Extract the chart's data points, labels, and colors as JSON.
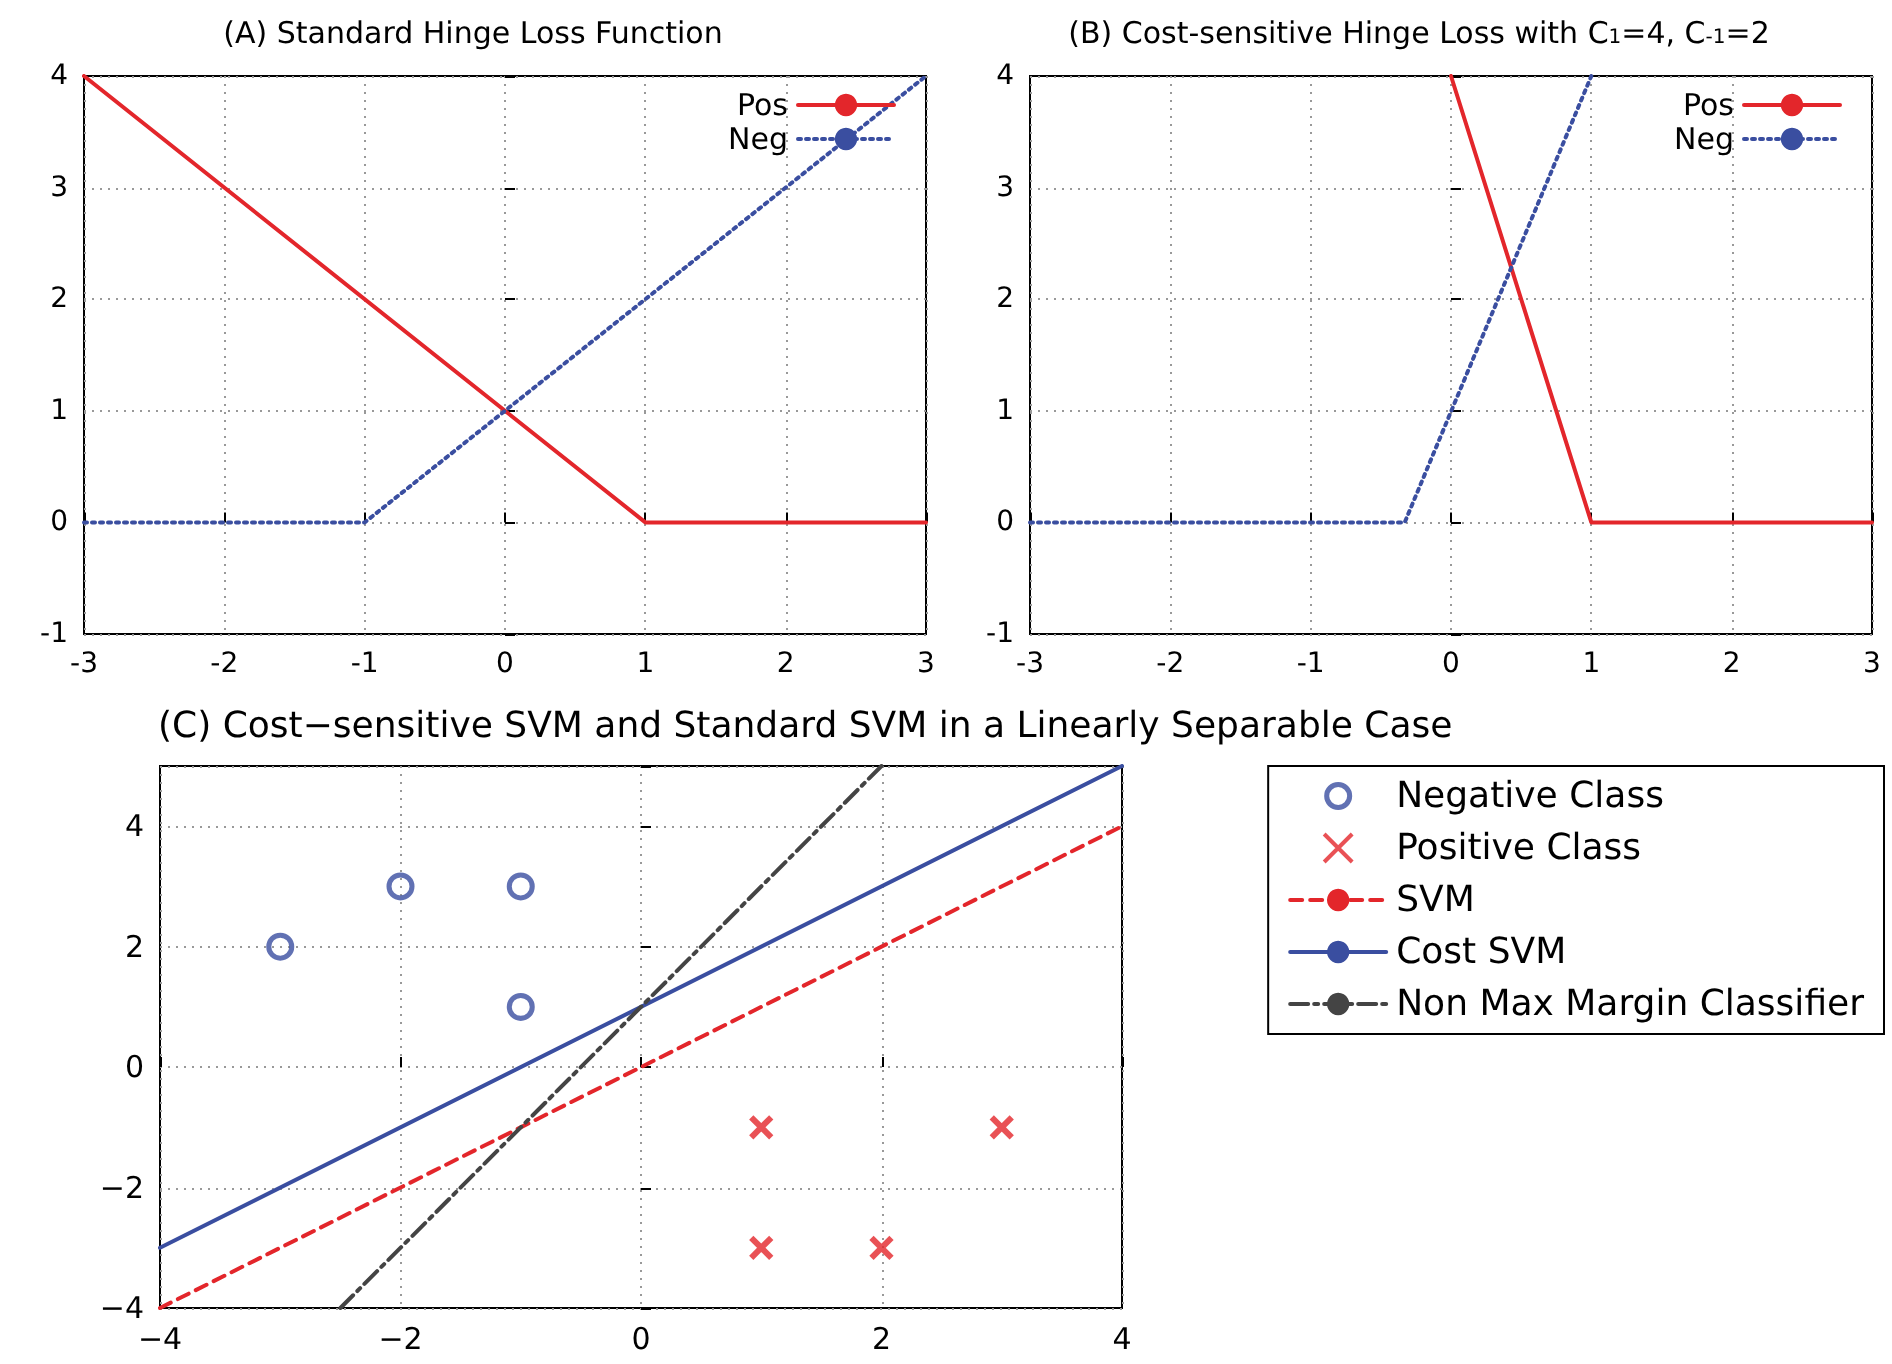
{
  "chart_data": [
    {
      "type": "line",
      "title": "(A) Standard Hinge Loss Function",
      "xlim": [
        -3,
        3
      ],
      "ylim": [
        -1,
        4
      ],
      "xticks": [
        -3,
        -2,
        -1,
        0,
        1,
        2,
        3
      ],
      "yticks": [
        -1,
        0,
        1,
        2,
        3,
        4
      ],
      "grid": true,
      "legend": "top right",
      "marker": "none",
      "series": [
        {
          "name": "Pos",
          "color": "#e3262b",
          "line_style": "solid",
          "x": [
            -3,
            1,
            3
          ],
          "values": [
            4,
            0,
            0
          ]
        },
        {
          "name": "Neg",
          "color": "#3a4ea0",
          "line_style": "dotted",
          "x": [
            -3,
            -1,
            3
          ],
          "values": [
            0,
            0,
            4
          ]
        }
      ]
    },
    {
      "type": "line",
      "title": "(B) Cost-sensitive Hinge Loss with C$_{1}$=4, C$_{-1}$=2",
      "xlim": [
        -3,
        3
      ],
      "ylim": [
        -1,
        4
      ],
      "xticks": [
        -3,
        -2,
        -1,
        0,
        1,
        2,
        3
      ],
      "yticks": [
        -1,
        0,
        1,
        2,
        3,
        4
      ],
      "grid": true,
      "legend": "top right",
      "marker": "none",
      "series": [
        {
          "name": "Pos",
          "color": "#e3262b",
          "line_style": "solid",
          "x": [
            0,
            1,
            3
          ],
          "values": [
            4,
            0,
            0
          ]
        },
        {
          "name": "Neg",
          "color": "#3a4ea0",
          "line_style": "dotted",
          "x": [
            -3,
            -0.33,
            1
          ],
          "values": [
            0,
            0,
            4
          ]
        }
      ]
    },
    {
      "type": "line",
      "title": "(C) Cost−sensitive SVM and Standard SVM in a Linearly Separable Case",
      "xlim": [
        -4,
        4
      ],
      "ylim": [
        -4,
        5
      ],
      "xticks": [
        {
          "value": -4,
          "label": "−4"
        },
        {
          "value": -2,
          "label": "−2"
        },
        0,
        2,
        4
      ],
      "yticks": [
        {
          "value": -4,
          "label": "−4"
        },
        {
          "value": -2,
          "label": "−2"
        },
        0,
        2,
        4
      ],
      "grid": true,
      "legend": "right",
      "series": [
        {
          "name": "Negative Class",
          "type": "scatter",
          "marker": "circle",
          "color": "#3a4ea0",
          "x": [
            -3,
            -2,
            -1,
            -1
          ],
          "values": [
            2,
            3,
            3,
            1
          ]
        },
        {
          "name": "Positive Class",
          "type": "scatter",
          "marker": "cross",
          "color": "#e3262b",
          "x": [
            1,
            3,
            1,
            2
          ],
          "values": [
            -1,
            -1,
            -3,
            -3
          ]
        },
        {
          "name": "SVM",
          "color": "#e3262b",
          "line_style": "dashed",
          "marker": "none",
          "x": [
            -4,
            4
          ],
          "values": [
            -4,
            4
          ]
        },
        {
          "name": "Cost SVM",
          "color": "#3a4ea0",
          "line_style": "solid",
          "marker": "none",
          "x": [
            -4,
            4
          ],
          "values": [
            -3,
            5
          ]
        },
        {
          "name": "Non Max Margin Classifier",
          "color": "#444444",
          "line_style": "dashdot",
          "marker": "none",
          "x": [
            -2.5,
            2
          ],
          "values": [
            -4,
            5
          ]
        }
      ]
    }
  ]
}
